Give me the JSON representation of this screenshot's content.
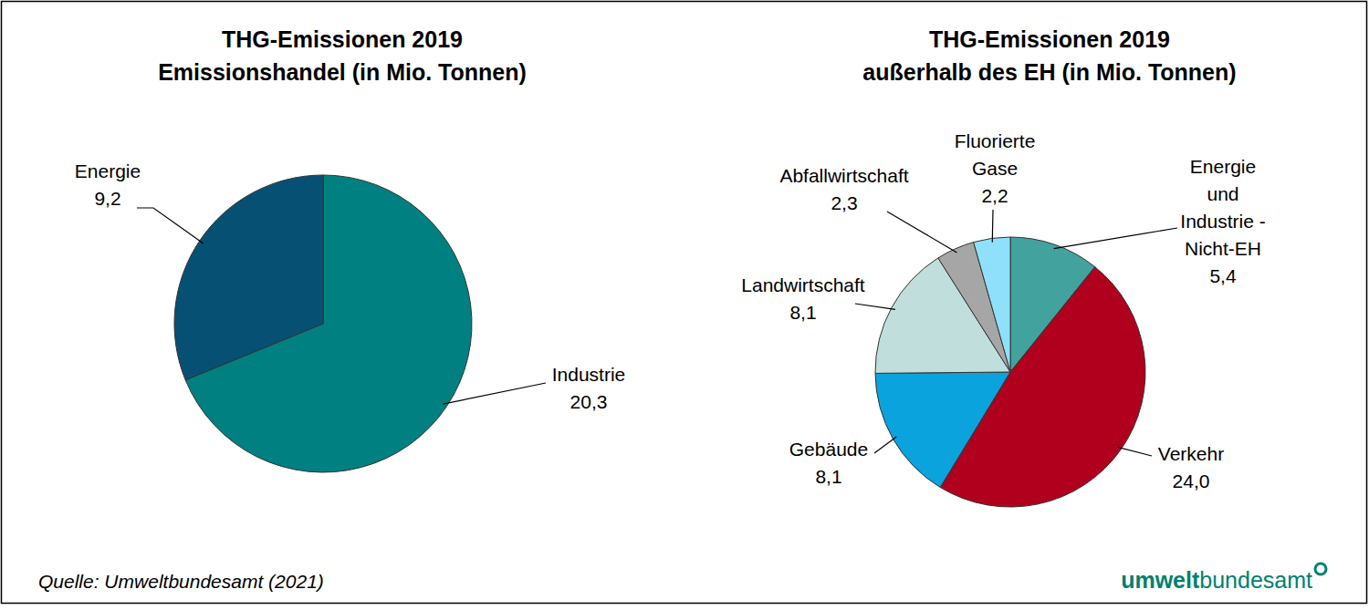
{
  "chart_data": [
    {
      "type": "pie",
      "title": "THG-Emissionen 2019",
      "subtitle": "Emissionshandel (in Mio. Tonnen)",
      "categories": [
        "Industrie",
        "Energie"
      ],
      "values": [
        20.3,
        9.2
      ],
      "value_labels": [
        "20,3",
        "9,2"
      ],
      "colors": [
        "#008080",
        "#065173"
      ],
      "data_labels": true
    },
    {
      "type": "pie",
      "title": "THG-Emissionen 2019",
      "subtitle": "außerhalb des EH (in Mio. Tonnen)",
      "categories": [
        "Energie\nund\nIndustrie -\nNicht-EH",
        "Verkehr",
        "Gebäude",
        "Landwirtschaft",
        "Abfallwirtschaft",
        "Fluorierte\nGase"
      ],
      "values": [
        5.4,
        24.0,
        8.1,
        8.1,
        2.3,
        2.2
      ],
      "value_labels": [
        "5,4",
        "24,0",
        "8,1",
        "8,1",
        "2,3",
        "2,2"
      ],
      "colors": [
        "#41a29e",
        "#b0001e",
        "#0aa3dd",
        "#c0dfdc",
        "#a6a6a6",
        "#8fe1fb"
      ],
      "data_labels": true
    }
  ],
  "source": "Quelle: Umweltbundesamt (2021)",
  "logo": [
    "umwelt",
    "bundesamt"
  ]
}
